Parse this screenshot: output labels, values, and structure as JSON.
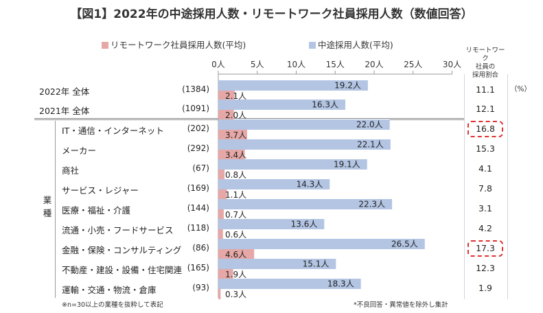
{
  "title": "【図1】2022年の中途採用人数・リモートワーク社員採用人数（数値回答）",
  "ratio_header": [
    "リモートワーク",
    "社員の",
    "採用割合"
  ],
  "pct_unit": "（%）",
  "industry_group_label": "業種",
  "footnote_left": "※n=30以上の業種を抜粋して表記",
  "footnote_right": "*不良回答・異常値を除外し集計",
  "colors": {
    "remote": "#e6a8a6",
    "midcareer": "#b3c5e3",
    "highlight": "#e03030",
    "title_bracket": "#2bb3c0"
  },
  "chart_data": {
    "type": "bar",
    "orientation": "horizontal",
    "x_ticks": [
      "0人",
      "5人",
      "10人",
      "15人",
      "20人",
      "25人",
      "30人"
    ],
    "xlim": [
      0,
      30
    ],
    "series": [
      {
        "name": "リモートワーク社員採用人数(平均)",
        "values": [
          2.1,
          2.0,
          3.7,
          3.4,
          0.8,
          1.1,
          0.7,
          0.6,
          4.6,
          1.9,
          0.3
        ],
        "labels": [
          "2.1人",
          "2.0人",
          "3.7人",
          "3.4人",
          "0.8人",
          "1.1人",
          "0.7人",
          "0.6人",
          "4.6人",
          "1.9人",
          "0.3人"
        ]
      },
      {
        "name": "中途採用人数(平均)",
        "values": [
          19.2,
          16.3,
          22.0,
          22.1,
          19.1,
          14.3,
          22.3,
          13.6,
          26.5,
          15.1,
          18.3
        ],
        "labels": [
          "19.2人",
          "16.3人",
          "22.0人",
          "22.1人",
          "19.1人",
          "14.3人",
          "22.3人",
          "13.6人",
          "26.5人",
          "15.1人",
          "18.3人"
        ]
      }
    ],
    "rows": [
      {
        "label": "2022年 全体",
        "n": "(1384)",
        "ratio": "11.1",
        "highlight": false
      },
      {
        "label": "2021年 全体",
        "n": "(1091)",
        "ratio": "12.1",
        "highlight": false
      },
      {
        "label": "IT・通信・インターネット",
        "n": "(202)",
        "ratio": "16.8",
        "highlight": true
      },
      {
        "label": "メーカー",
        "n": "(292)",
        "ratio": "15.3",
        "highlight": false
      },
      {
        "label": "商社",
        "n": "(67)",
        "ratio": "4.1",
        "highlight": false
      },
      {
        "label": "サービス・レジャー",
        "n": "(169)",
        "ratio": "7.8",
        "highlight": false
      },
      {
        "label": "医療・福祉・介護",
        "n": "(144)",
        "ratio": "3.1",
        "highlight": false
      },
      {
        "label": "流通・小売・フードサービス",
        "n": "(118)",
        "ratio": "4.2",
        "highlight": false
      },
      {
        "label": "金融・保険・コンサルティング",
        "n": "(86)",
        "ratio": "17.3",
        "highlight": true
      },
      {
        "label": "不動産・建設・設備・住宅関連",
        "n": "(165)",
        "ratio": "12.3",
        "highlight": false
      },
      {
        "label": "運輸・交通・物流・倉庫",
        "n": "(93)",
        "ratio": "1.9",
        "highlight": false
      }
    ]
  }
}
